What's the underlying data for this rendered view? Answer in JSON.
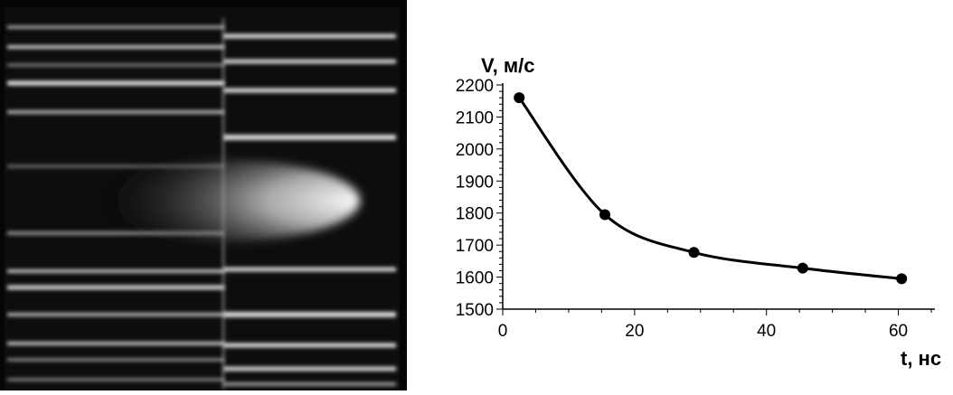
{
  "panel_photo": {
    "description_icon": "streak-photograph-image",
    "background_color": "#050505",
    "streak_color": "#ffffff"
  },
  "chart_data": {
    "type": "line",
    "title": "",
    "xlabel": "t, нс",
    "ylabel": "V, м/с",
    "xlim": [
      0,
      65
    ],
    "ylim": [
      1500,
      2200
    ],
    "xticks": [
      0,
      20,
      40,
      60
    ],
    "yticks": [
      1500,
      1600,
      1700,
      1800,
      1900,
      2000,
      2100,
      2200
    ],
    "grid": false,
    "legend": "none",
    "series": [
      {
        "marker": "circle",
        "color": "#000000",
        "points": [
          {
            "x": 2.5,
            "y": 2160
          },
          {
            "x": 15.5,
            "y": 1795
          },
          {
            "x": 29,
            "y": 1677
          },
          {
            "x": 45.5,
            "y": 1628
          },
          {
            "x": 60.5,
            "y": 1595
          }
        ]
      }
    ]
  }
}
